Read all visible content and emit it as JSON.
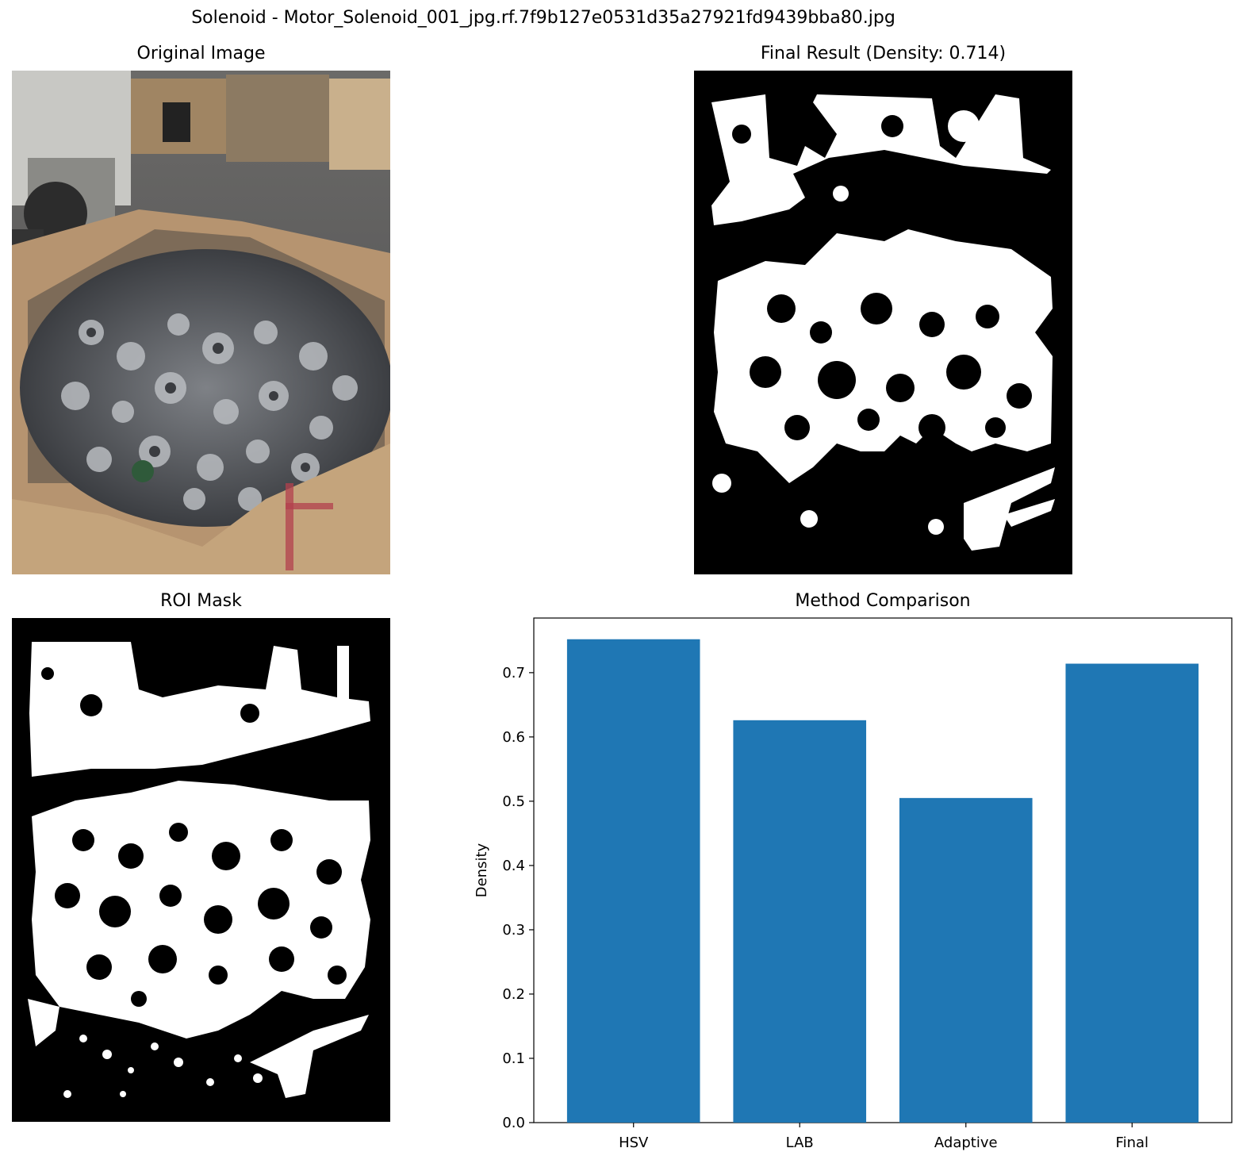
{
  "figure": {
    "suptitle": "Solenoid - Motor_Solenoid_001_jpg.rf.7f9b127e0531d35a27921fd9439bba80.jpg"
  },
  "panels": {
    "original": {
      "title": "Original Image"
    },
    "final": {
      "title": "Final Result (Density: 0.714)"
    },
    "roi": {
      "title": "ROI Mask"
    },
    "comparison": {
      "title": "Method Comparison"
    }
  },
  "chart_data": {
    "type": "bar",
    "title": "Method Comparison",
    "categories": [
      "HSV",
      "LAB",
      "Adaptive",
      "Final"
    ],
    "values": [
      0.752,
      0.626,
      0.505,
      0.714
    ],
    "xlabel": "",
    "ylabel": "Density",
    "ylim": [
      0.0,
      0.785
    ],
    "yticks": [
      0.0,
      0.1,
      0.2,
      0.3,
      0.4,
      0.5,
      0.6,
      0.7
    ],
    "ytick_labels": [
      "0.0",
      "0.1",
      "0.2",
      "0.3",
      "0.4",
      "0.5",
      "0.6",
      "0.7"
    ],
    "bar_color": "#1f77b4",
    "grid": false
  }
}
